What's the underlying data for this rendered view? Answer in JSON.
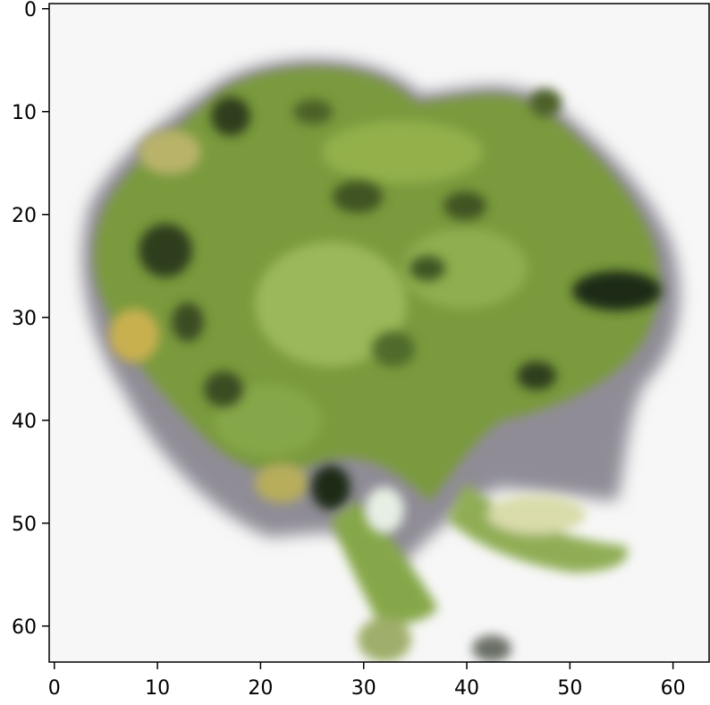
{
  "image": {
    "subject": "green frog",
    "pixel_grid": "64x64"
  },
  "axes": {
    "x": {
      "min": 0,
      "max": 64,
      "ticks": [
        {
          "value": 0,
          "label": "0"
        },
        {
          "value": 10,
          "label": "10"
        },
        {
          "value": 20,
          "label": "20"
        },
        {
          "value": 30,
          "label": "30"
        },
        {
          "value": 40,
          "label": "40"
        },
        {
          "value": 50,
          "label": "50"
        },
        {
          "value": 60,
          "label": "60"
        }
      ]
    },
    "y": {
      "min": 0,
      "max": 64,
      "inverted": true,
      "ticks": [
        {
          "value": 0,
          "label": "0"
        },
        {
          "value": 10,
          "label": "10"
        },
        {
          "value": 20,
          "label": "20"
        },
        {
          "value": 30,
          "label": "30"
        },
        {
          "value": 40,
          "label": "40"
        },
        {
          "value": 50,
          "label": "50"
        },
        {
          "value": 60,
          "label": "60"
        }
      ]
    }
  },
  "colors": {
    "background": "#f7f7f7",
    "frog_body": "#7a9a3c",
    "frog_light": "#9bb85a",
    "frog_dark": "#2e3d1a",
    "frog_yellow": "#c9b050",
    "frog_shadow": "#5a5560"
  }
}
